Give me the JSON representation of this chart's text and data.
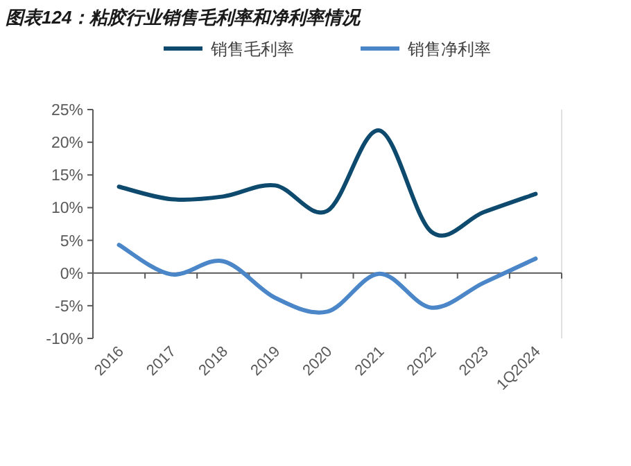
{
  "chart_data": {
    "type": "line",
    "title": "图表124：粘胶行业销售毛利率和净利率情况",
    "categories": [
      "2016",
      "2017",
      "2018",
      "2019",
      "2020",
      "2021",
      "2022",
      "2023",
      "1Q2024"
    ],
    "series": [
      {
        "name": "销售毛利率",
        "color": "#0e4a6e",
        "values": [
          13.2,
          11.3,
          11.7,
          13.4,
          9.5,
          21.8,
          6.3,
          9.3,
          12.1
        ]
      },
      {
        "name": "销售净利率",
        "color": "#4a86c8",
        "values": [
          4.3,
          -0.2,
          1.8,
          -3.8,
          -5.9,
          -0.1,
          -5.3,
          -1.5,
          2.2
        ]
      }
    ],
    "ylim": [
      -10,
      25
    ],
    "yticks": [
      {
        "value": -10,
        "label": "-10%"
      },
      {
        "value": -5,
        "label": "-5%"
      },
      {
        "value": 0,
        "label": "0%"
      },
      {
        "value": 5,
        "label": "5%"
      },
      {
        "value": 10,
        "label": "10%"
      },
      {
        "value": 15,
        "label": "15%"
      },
      {
        "value": 20,
        "label": "20%"
      },
      {
        "value": 25,
        "label": "25%"
      }
    ],
    "legend": "top",
    "marker": "none",
    "line_style": "solid"
  }
}
